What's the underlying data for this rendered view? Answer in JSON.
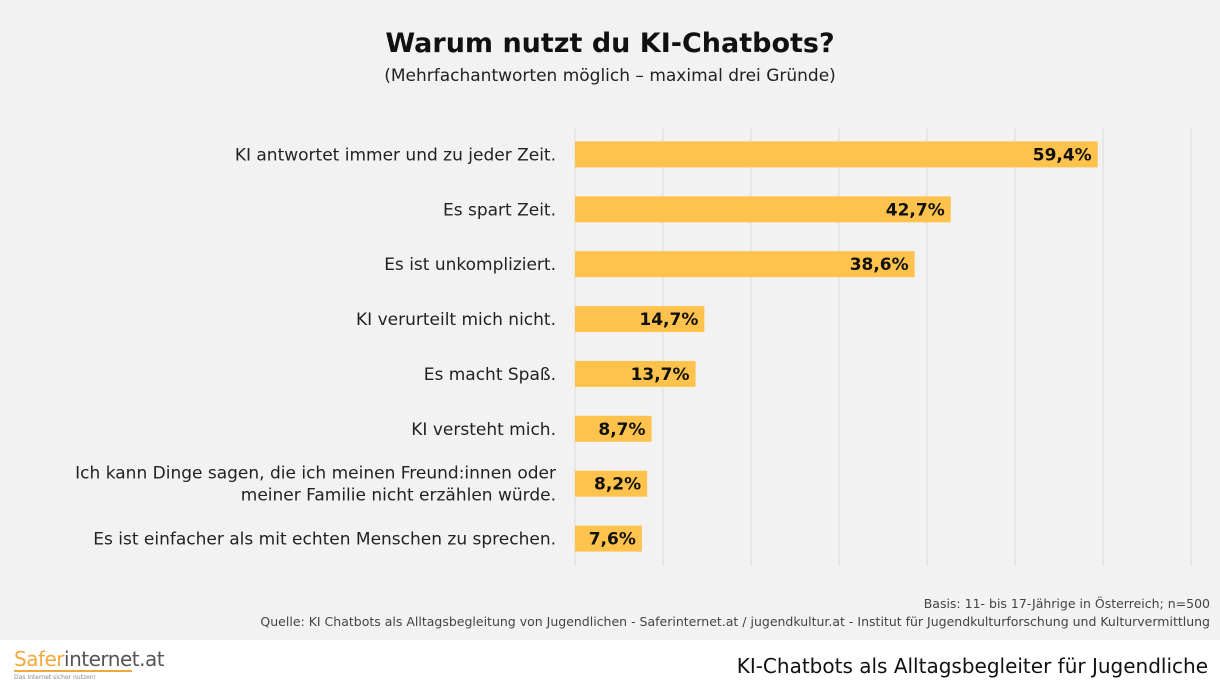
{
  "chart_data": {
    "type": "bar",
    "orientation": "horizontal",
    "title": "Warum nutzt du KI-Chatbots?",
    "subtitle": "(Mehrfachantworten möglich – maximal drei Gründe)",
    "categories": [
      "KI antwortet immer und zu jeder Zeit.",
      "Es spart Zeit.",
      "Es ist unkompliziert.",
      "KI verurteilt mich nicht.",
      "Es macht Spaß.",
      "KI versteht mich.",
      "Ich kann Dinge sagen, die ich meinen Freund:innen oder|meiner Familie nicht erzählen würde.",
      "Es ist einfacher als mit echten Menschen zu sprechen."
    ],
    "values": [
      59.4,
      42.7,
      38.6,
      14.7,
      13.7,
      8.7,
      8.2,
      7.6
    ],
    "labels": [
      "59,4%",
      "42,7%",
      "38,6%",
      "14,7%",
      "13,7%",
      "8,7%",
      "8,2%",
      "7,6%"
    ],
    "xlim": [
      0,
      70
    ],
    "grid": true,
    "bar_color": "#ffc34d"
  },
  "basis": "Basis: 11- bis 17-Jährige in Österreich; n=500",
  "source": "Quelle: KI Chatbots als Alltagsbegleitung von Jugendlichen - Saferinternet.at / jugendkultur.at - Institut für Jugendkulturforschung und Kulturvermittlung",
  "logo": {
    "part1": "Safer",
    "part2": "internet.at",
    "tagline": "Das Internet sicher nutzen!"
  },
  "footer": "KI-Chatbots als Alltagsbegleiter für Jugendliche"
}
